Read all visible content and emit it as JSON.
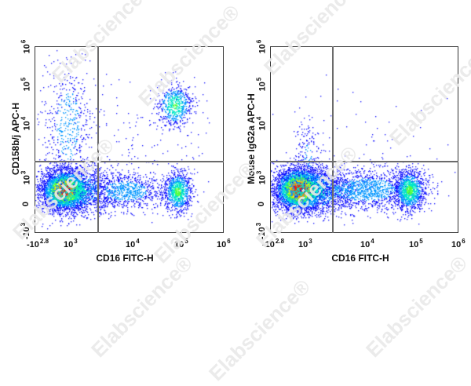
{
  "watermark": {
    "text": "Elabscience®",
    "color": "#e9e9e9"
  },
  "chart_data": [
    {
      "type": "scatter",
      "subtype": "flow-cytometry-density-dot-plot",
      "title": "",
      "xlabel": "CD16 FITC-H",
      "ylabel": "CD158b/j APC-H",
      "x_scale": "biexponential",
      "y_scale": "biexponential",
      "x_ticks": [
        {
          "base": "-10",
          "exp": "2.8"
        },
        {
          "base": "10",
          "exp": "3"
        },
        {
          "base": "10",
          "exp": "4"
        },
        {
          "base": "10",
          "exp": "5"
        },
        {
          "base": "10",
          "exp": "6"
        }
      ],
      "y_ticks": [
        {
          "base": "-10",
          "exp": "3"
        },
        {
          "base": "0",
          "exp": ""
        },
        {
          "base": "10",
          "exp": "3"
        },
        {
          "base": "10",
          "exp": "4"
        },
        {
          "base": "10",
          "exp": "5"
        },
        {
          "base": "10",
          "exp": "6"
        }
      ],
      "xlim": [
        "-10^2.8",
        "10^6"
      ],
      "ylim": [
        "-10^3",
        "10^6"
      ],
      "gates": {
        "x_threshold_approx": 2500,
        "y_threshold_approx": 2000
      },
      "populations": [
        {
          "name": "CD16- CD158b/j-",
          "x_center_approx": 700,
          "y_center_approx": 400,
          "density": "very high",
          "color_peak": "red"
        },
        {
          "name": "CD16- CD158b/j+",
          "x_center_approx": 800,
          "y_center_approx": 30000,
          "density": "low",
          "color_peak": "blue"
        },
        {
          "name": "CD16+ CD158b/j+",
          "x_center_approx": 80000,
          "y_center_approx": 25000,
          "density": "medium",
          "color_peak": "cyan"
        },
        {
          "name": "CD16+ CD158b/j-",
          "x_center_approx": 80000,
          "y_center_approx": 400,
          "density": "medium",
          "color_peak": "cyan"
        },
        {
          "name": "CD16 intermediate CD158b/j-",
          "x_center_approx": 4000,
          "y_center_approx": 400,
          "density": "low",
          "color_peak": "blue"
        }
      ],
      "color_scale": [
        "#0000ff",
        "#00b4ff",
        "#00ff80",
        "#c8ff00",
        "#ffd200",
        "#ff0000"
      ],
      "grid": false,
      "legend": null
    },
    {
      "type": "scatter",
      "subtype": "flow-cytometry-density-dot-plot",
      "title": "",
      "xlabel": "CD16 FITC-H",
      "ylabel": "Mouse IgG2a APC-H",
      "x_scale": "biexponential",
      "y_scale": "biexponential",
      "x_ticks": [
        {
          "base": "-10",
          "exp": "2.8"
        },
        {
          "base": "10",
          "exp": "3"
        },
        {
          "base": "10",
          "exp": "4"
        },
        {
          "base": "10",
          "exp": "5"
        },
        {
          "base": "10",
          "exp": "6"
        }
      ],
      "y_ticks": [
        {
          "base": "-10",
          "exp": "3"
        },
        {
          "base": "0",
          "exp": ""
        },
        {
          "base": "10",
          "exp": "3"
        },
        {
          "base": "10",
          "exp": "4"
        },
        {
          "base": "10",
          "exp": "5"
        },
        {
          "base": "10",
          "exp": "6"
        }
      ],
      "xlim": [
        "-10^2.8",
        "10^6"
      ],
      "ylim": [
        "-10^3",
        "10^6"
      ],
      "gates": {
        "x_threshold_approx": 2500,
        "y_threshold_approx": 2000
      },
      "populations": [
        {
          "name": "CD16- isotype-",
          "x_center_approx": 650,
          "y_center_approx": 400,
          "density": "very high",
          "color_peak": "red"
        },
        {
          "name": "CD16+ isotype-",
          "x_center_approx": 70000,
          "y_center_approx": 400,
          "density": "medium",
          "color_peak": "cyan"
        },
        {
          "name": "CD16 intermediate isotype-",
          "x_center_approx": 5000,
          "y_center_approx": 400,
          "density": "low-medium",
          "color_peak": "blue"
        },
        {
          "name": "isotype+ (sparse background)",
          "x_center_approx": 800,
          "y_center_approx": 5000,
          "density": "very low",
          "color_peak": "blue"
        }
      ],
      "color_scale": [
        "#0000ff",
        "#00b4ff",
        "#00ff80",
        "#c8ff00",
        "#ffd200",
        "#ff0000"
      ],
      "grid": false,
      "legend": null
    }
  ]
}
